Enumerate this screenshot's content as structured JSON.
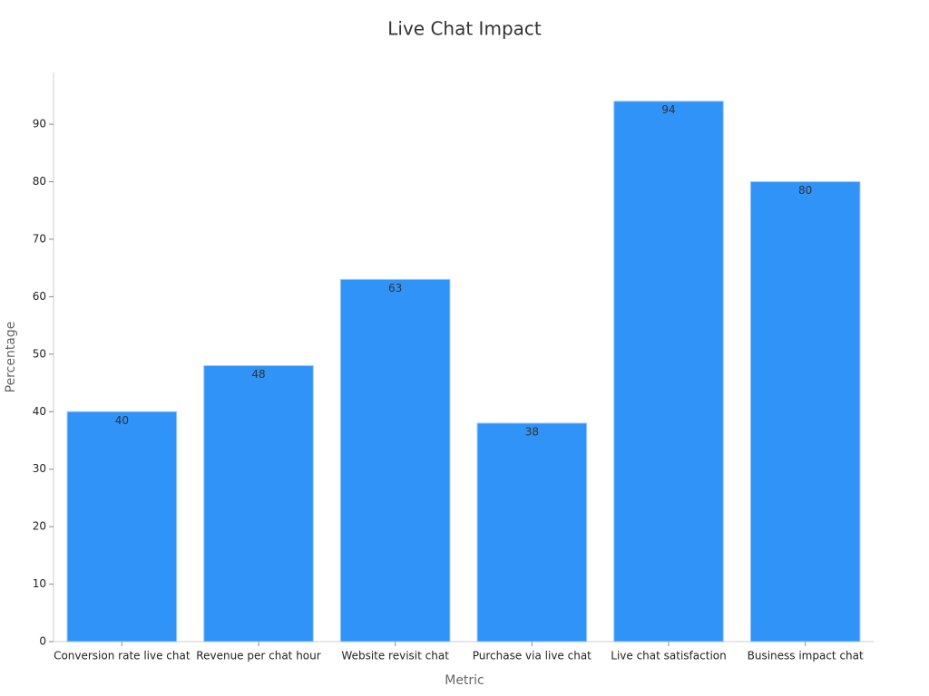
{
  "chart_data": {
    "type": "bar",
    "title": "Live Chat Impact",
    "x_label": "Metric",
    "y_label": "Percentage",
    "categories": [
      "Conversion rate live chat",
      "Revenue per chat hour",
      "Website revisit chat",
      "Purchase via live chat",
      "Live chat satisfaction",
      "Business impact chat"
    ],
    "values": [
      40,
      48,
      63,
      38,
      94,
      80
    ],
    "color": "#2f93f8",
    "ylim": [
      0,
      99
    ],
    "yticks": [
      0,
      10,
      20,
      30,
      40,
      50,
      60,
      70,
      80,
      90
    ],
    "grid": false,
    "data_labels": true
  }
}
